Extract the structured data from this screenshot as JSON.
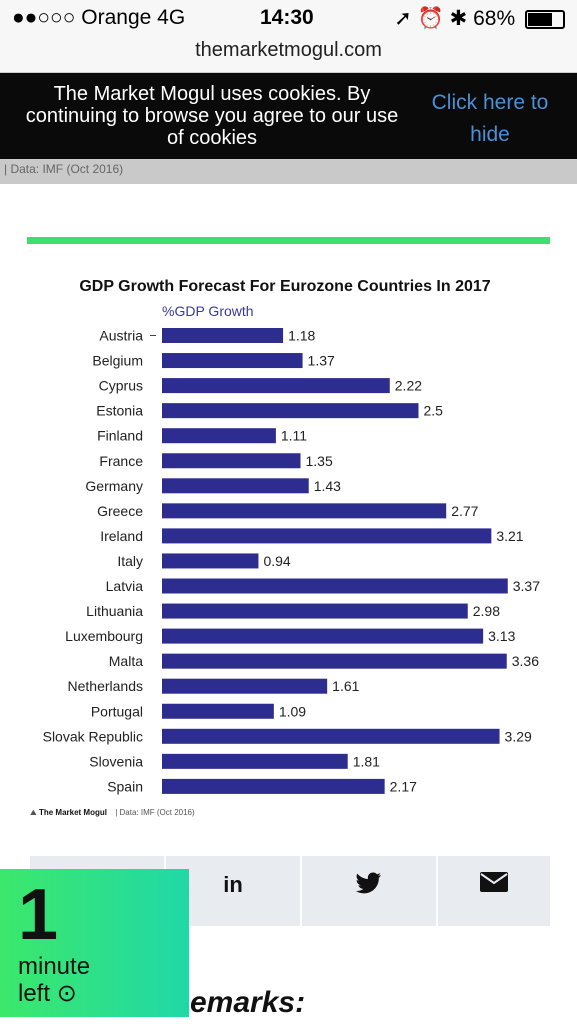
{
  "status_bar": {
    "carrier": "●●○○○ Orange  4G",
    "time": "14:30",
    "battery": "68%",
    "icons": [
      "location-icon",
      "alarm-icon",
      "bluetooth-icon"
    ]
  },
  "url_bar": {
    "domain": "themarketmogul.com"
  },
  "cookie_banner": {
    "message": "The Market Mogul uses cookies. By continuing to browse you agree to our use of cookies",
    "hide_link": "Click here to hide"
  },
  "strip": {
    "caption": "| Data: IMF (Oct 2016)"
  },
  "colors": {
    "accent_green": "#3ce06a",
    "bar_navy": "#2d2c8f",
    "link_blue": "#4a8fd8"
  },
  "chart": {
    "credit_brand": "The Market Mogul",
    "credit_source": "| Data: IMF (Oct 2016)"
  },
  "chart_data": {
    "type": "bar",
    "orientation": "horizontal",
    "title": "GDP Growth Forecast For Eurozone Countries In 2017",
    "ylabel": "%GDP Growth",
    "categories": [
      "Austria",
      "Belgium",
      "Cyprus",
      "Estonia",
      "Finland",
      "France",
      "Germany",
      "Greece",
      "Ireland",
      "Italy",
      "Latvia",
      "Lithuania",
      "Luxembourg",
      "Malta",
      "Netherlands",
      "Portugal",
      "Slovak Republic",
      "Slovenia",
      "Spain"
    ],
    "values": [
      1.18,
      1.37,
      2.22,
      2.5,
      1.11,
      1.35,
      1.43,
      2.77,
      3.21,
      0.94,
      3.37,
      2.98,
      3.13,
      3.36,
      1.61,
      1.09,
      3.29,
      1.81,
      2.17
    ],
    "grid": false
  },
  "share_bar": {
    "icons": [
      "facebook-icon",
      "linkedin-icon",
      "twitter-icon",
      "email-icon"
    ],
    "linkedin_glyph": "in"
  },
  "reading_badge": {
    "number": "1",
    "unit_line1": "minute",
    "unit_line2": "left"
  },
  "article": {
    "partial_heading": "emarks:"
  }
}
